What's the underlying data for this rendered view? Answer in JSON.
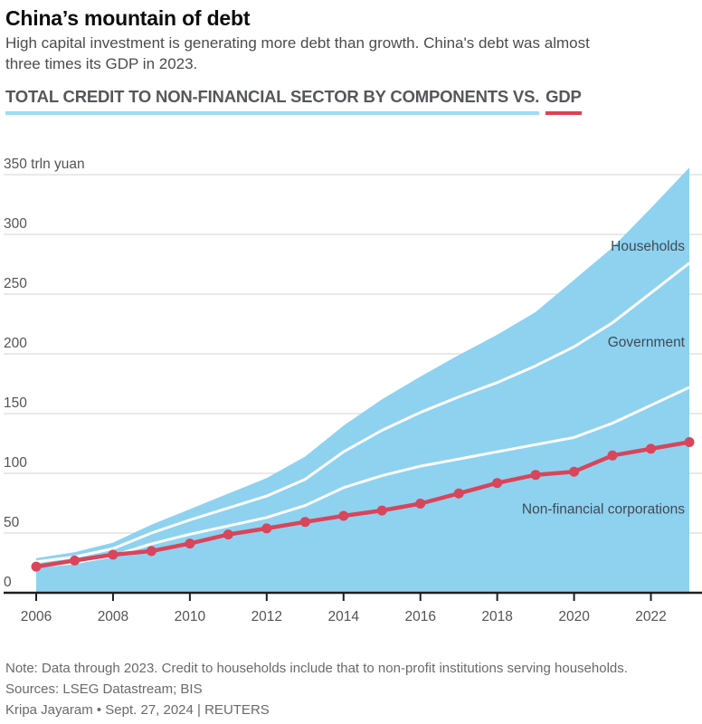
{
  "page": {
    "title": "China’s mountain of debt",
    "subtitle_lines": [
      "High capital investment is generating more debt than growth. China's debt was almost",
      "three times its GDP in 2023."
    ]
  },
  "section_header": {
    "components_label": "TOTAL CREDIT TO NON-FINANCIAL SECTOR BY COMPONENTS VS.",
    "gdp_label": "GDP",
    "components_underline_color": "#9fdbf4",
    "gdp_underline_color": "#e23e52"
  },
  "chart_data": {
    "type": "area",
    "stacked": true,
    "title": "TOTAL CREDIT TO NON-FINANCIAL SECTOR BY COMPONENTS VS. GDP",
    "unit": "trln yuan",
    "x": [
      2006,
      2007,
      2008,
      2009,
      2010,
      2011,
      2012,
      2013,
      2014,
      2015,
      2016,
      2017,
      2018,
      2019,
      2020,
      2021,
      2022,
      2023
    ],
    "series": [
      {
        "name": "Non-financial corporations",
        "role": "stack",
        "values": [
          22,
          25,
          31,
          41,
          49,
          56,
          63,
          73,
          88,
          98,
          106,
          112,
          118,
          124,
          130,
          142,
          157,
          172
        ]
      },
      {
        "name": "Government",
        "role": "stack",
        "values": [
          4,
          5,
          6,
          9,
          12,
          15,
          18,
          22,
          30,
          38,
          45,
          52,
          58,
          66,
          76,
          84,
          94,
          104
        ]
      },
      {
        "name": "Households",
        "role": "stack",
        "values": [
          3,
          4,
          5,
          7,
          9,
          12,
          15,
          19,
          22,
          26,
          30,
          35,
          40,
          45,
          56,
          63,
          71,
          80
        ]
      },
      {
        "name": "GDP",
        "role": "line",
        "values": [
          21.9,
          27.0,
          31.9,
          34.9,
          41.2,
          48.8,
          53.9,
          59.3,
          64.4,
          68.9,
          74.6,
          83.2,
          91.9,
          98.7,
          101.4,
          114.9,
          120.5,
          126.1
        ]
      }
    ],
    "ylim": [
      0,
      350
    ],
    "yticks": [
      0,
      50,
      100,
      150,
      200,
      250,
      300,
      350
    ],
    "ytick_top_label": "350 trln yuan",
    "xticks": [
      2006,
      2008,
      2010,
      2012,
      2014,
      2016,
      2018,
      2020,
      2022
    ],
    "grid": "horizontal",
    "legend": "none",
    "annotations": [
      {
        "text": "Households",
        "value": 290
      },
      {
        "text": "Government",
        "value": 210
      },
      {
        "text": "Non-financial corporations",
        "value": 70
      }
    ],
    "colors": {
      "area": "#8ed2f0",
      "divider": "#ffffff",
      "gdp_line": "#d9455a",
      "grid": "#dcdcdc",
      "axis": "#1f1f1f",
      "tick_label": "#545454",
      "annotation": "#3f4a54"
    }
  },
  "footer": {
    "note": "Note: Data through 2023. Credit to households include that to non-profit institutions serving households.",
    "sources": "Sources: LSEG Datastream; BIS",
    "credit": "Kripa Jayaram • Sept. 27, 2024 | REUTERS"
  }
}
